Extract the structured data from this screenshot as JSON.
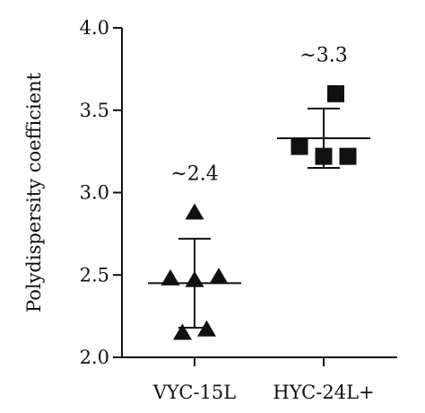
{
  "chart_data": {
    "type": "scatter",
    "ylabel": "Polydispersity coefficient",
    "ylim": [
      2.0,
      4.0
    ],
    "yticks": [
      {
        "value": 2.0,
        "label": "2.0"
      },
      {
        "value": 2.5,
        "label": "2.5"
      },
      {
        "value": 3.0,
        "label": "3.0"
      },
      {
        "value": 3.5,
        "label": "3.5"
      },
      {
        "value": 4.0,
        "label": "4.0"
      }
    ],
    "categories": [
      "VYC-15L",
      "HYC-24L+"
    ],
    "grid": false,
    "series": [
      {
        "category": "VYC-15L",
        "marker": "triangle",
        "points": [
          {
            "offset": 0,
            "y": 2.88
          },
          {
            "offset": -1,
            "y": 2.48
          },
          {
            "offset": 0,
            "y": 2.47
          },
          {
            "offset": 1,
            "y": 2.49
          },
          {
            "offset": -0.5,
            "y": 2.15
          },
          {
            "offset": 0.5,
            "y": 2.17
          }
        ],
        "mean": 2.45,
        "sd_upper": 2.72,
        "sd_lower": 2.18,
        "annotation": "~2.4"
      },
      {
        "category": "HYC-24L+",
        "marker": "square",
        "points": [
          {
            "offset": 0.5,
            "y": 3.6
          },
          {
            "offset": -1,
            "y": 3.28
          },
          {
            "offset": 0,
            "y": 3.22
          },
          {
            "offset": 1,
            "y": 3.22
          }
        ],
        "mean": 3.33,
        "sd_upper": 3.51,
        "sd_lower": 3.15,
        "annotation": "~3.3"
      }
    ]
  }
}
